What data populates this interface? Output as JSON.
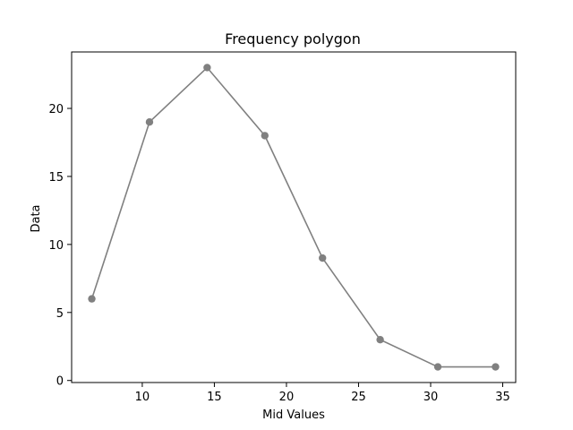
{
  "chart_data": {
    "type": "line",
    "title": "Frequency polygon",
    "xlabel": "Mid Values",
    "ylabel": "Data",
    "x": [
      6.5,
      10.5,
      14.5,
      18.5,
      22.5,
      26.5,
      30.5,
      34.5
    ],
    "series": [
      {
        "values": [
          6,
          19,
          23,
          18,
          9,
          3,
          1,
          1
        ],
        "color": "#808080",
        "marker": "circle"
      }
    ],
    "xlim": [
      5.1,
      35.9
    ],
    "ylim": [
      -0.15,
      24.15
    ],
    "xticks": [
      10,
      15,
      20,
      25,
      30,
      35
    ],
    "xtick_labels": [
      "10",
      "15",
      "20",
      "25",
      "30",
      "35"
    ],
    "yticks": [
      0,
      5,
      10,
      15,
      20
    ],
    "ytick_labels": [
      "0",
      "5",
      "10",
      "15",
      "20"
    ],
    "grid": false,
    "legend": "none"
  }
}
